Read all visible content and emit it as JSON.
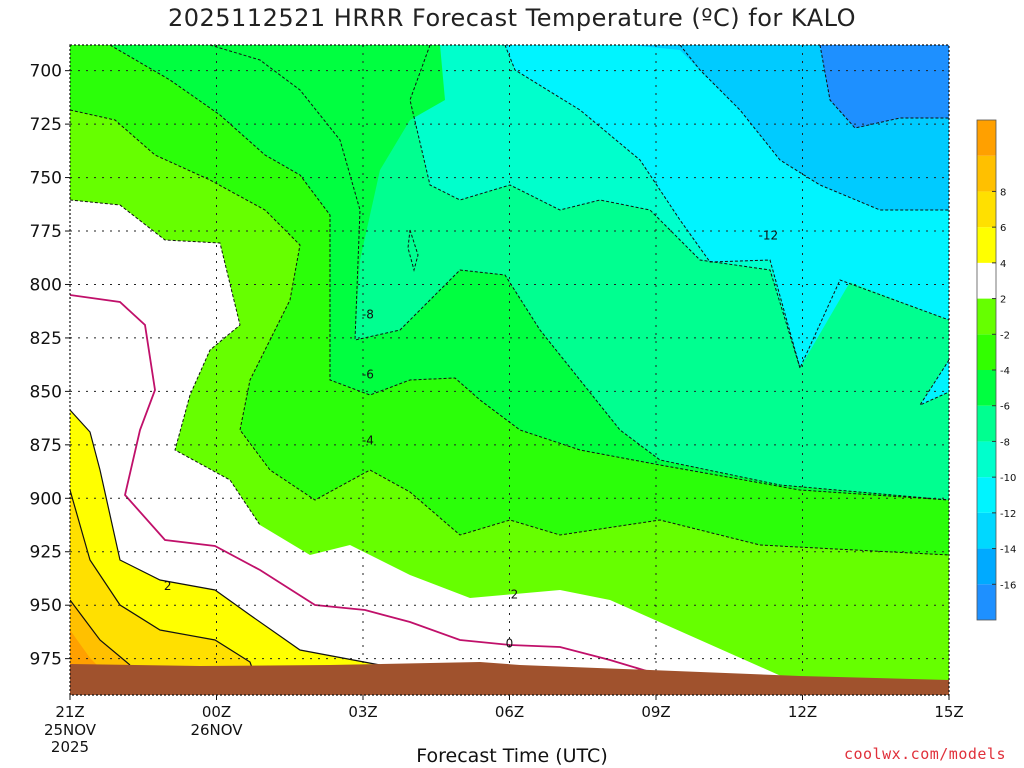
{
  "chart_data": {
    "type": "heatmap",
    "title": "2025112521 HRRR Forecast Temperature (ºC) for KALO",
    "xlabel": "Forecast Time (UTC)",
    "ylabel": "",
    "x_ticks": [
      {
        "hour": 0,
        "label": "21Z",
        "sub": [
          "25NOV",
          "2025"
        ]
      },
      {
        "hour": 3,
        "label": "00Z",
        "sub": [
          "26NOV"
        ]
      },
      {
        "hour": 6,
        "label": "03Z",
        "sub": []
      },
      {
        "hour": 9,
        "label": "06Z",
        "sub": []
      },
      {
        "hour": 12,
        "label": "09Z",
        "sub": []
      },
      {
        "hour": 15,
        "label": "12Z",
        "sub": []
      },
      {
        "hour": 18,
        "label": "15Z",
        "sub": []
      }
    ],
    "xlim": [
      0,
      18
    ],
    "y_ticks": [
      700,
      725,
      750,
      775,
      800,
      825,
      850,
      875,
      900,
      925,
      950,
      975
    ],
    "ylim": [
      688,
      992
    ],
    "grid": true,
    "colorbar": {
      "placement": "right",
      "levels": [
        -18,
        -16,
        -14,
        -12,
        -10,
        -8,
        -6,
        -4,
        -2,
        2,
        4,
        6,
        8,
        10
      ],
      "colors": [
        "#1e90ff",
        "#00aaff",
        "#00d8ff",
        "#00f4ff",
        "#00ffcc",
        "#00ff90",
        "#00ff40",
        "#32ff00",
        "#66ff00",
        "#ffffff",
        "#ffff00",
        "#ffe000",
        "#ffc000",
        "#ffa000"
      ],
      "tick_labels": [
        "-16",
        "-14",
        "-12",
        "-10",
        "-8",
        "-6",
        "-4",
        "-2",
        "2",
        "4",
        "6",
        "8"
      ]
    },
    "contour_labels": [
      {
        "text": "-12",
        "hour": 14.3,
        "pressure": 777
      },
      {
        "text": "-8",
        "hour": 6.1,
        "pressure": 814
      },
      {
        "text": "-6",
        "hour": 6.1,
        "pressure": 842
      },
      {
        "text": "-4",
        "hour": 6.1,
        "pressure": 873
      },
      {
        "text": "2",
        "hour": 2.0,
        "pressure": 941
      },
      {
        "text": "2",
        "hour": 9.1,
        "pressure": 945
      },
      {
        "text": "0",
        "hour": 9.0,
        "pressure": 968
      }
    ],
    "ground_color": "#a0522d"
  },
  "credit": "coolwx.com/models"
}
